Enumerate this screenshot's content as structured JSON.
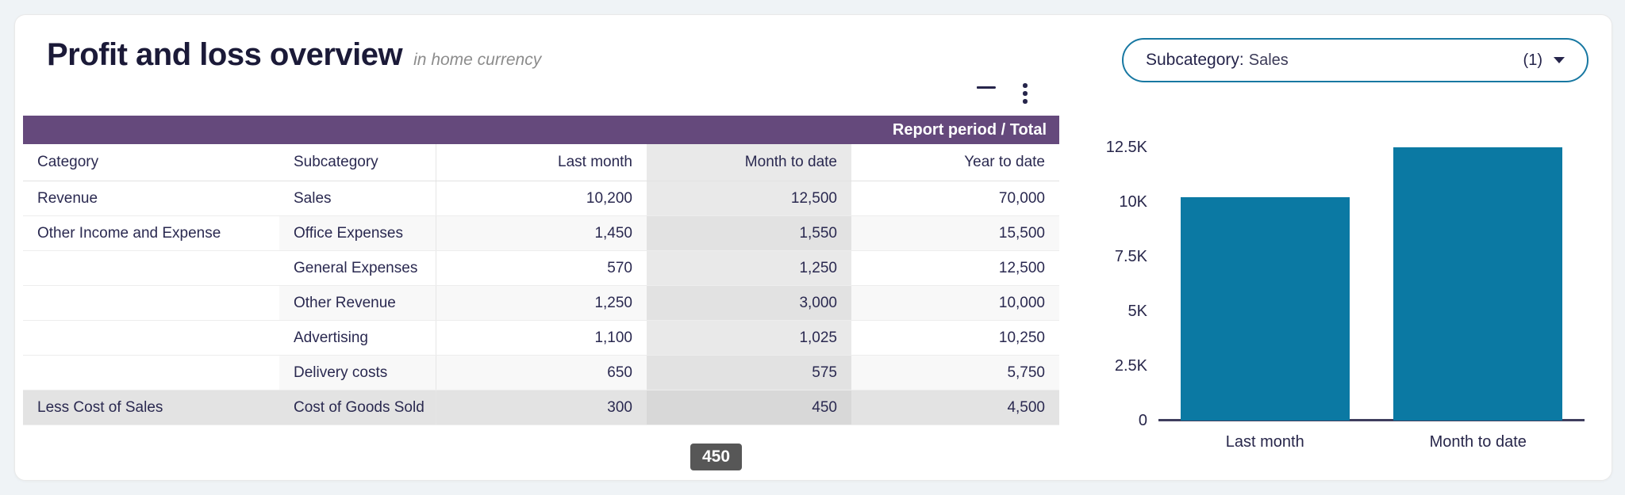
{
  "header": {
    "title": "Profit and loss overview",
    "subtitle": "in home currency",
    "icons": {
      "filter": "filter-icon",
      "menu": "kebab-menu-icon"
    }
  },
  "colors": {
    "page_background": "#eff3f6",
    "band_purple": "#65497c",
    "bar_teal": "#0b79a3",
    "dropdown_border_teal": "#1878a2",
    "tooltip_background": "#575757",
    "highlight_column_gray": "#e9e9e9"
  },
  "table": {
    "band_label": "Report period / Total",
    "columns": [
      "Category",
      "Subcategory",
      "Last month",
      "Month to date",
      "Year to date"
    ],
    "highlight_column": "Month to date",
    "rows": [
      {
        "category": "Revenue",
        "subcategory": "Sales",
        "last_month": "10,200",
        "month_to_date": "12,500",
        "year_to_date": "70,000",
        "zebra": false,
        "highlighted": false
      },
      {
        "category": "Other Income and Expense",
        "subcategory": "Office Expenses",
        "last_month": "1,450",
        "month_to_date": "1,550",
        "year_to_date": "15,500",
        "zebra": true,
        "highlighted": false
      },
      {
        "category": "",
        "subcategory": "General Expenses",
        "last_month": "570",
        "month_to_date": "1,250",
        "year_to_date": "12,500",
        "zebra": false,
        "highlighted": false
      },
      {
        "category": "",
        "subcategory": "Other Revenue",
        "last_month": "1,250",
        "month_to_date": "3,000",
        "year_to_date": "10,000",
        "zebra": true,
        "highlighted": false
      },
      {
        "category": "",
        "subcategory": "Advertising",
        "last_month": "1,100",
        "month_to_date": "1,025",
        "year_to_date": "10,250",
        "zebra": false,
        "highlighted": false
      },
      {
        "category": "",
        "subcategory": "Delivery costs",
        "last_month": "650",
        "month_to_date": "575",
        "year_to_date": "5,750",
        "zebra": true,
        "highlighted": false
      },
      {
        "category": "Less Cost of Sales",
        "subcategory": "Cost of Goods Sold",
        "last_month": "300",
        "month_to_date": "450",
        "year_to_date": "4,500",
        "zebra": false,
        "highlighted": true
      }
    ]
  },
  "tooltip": {
    "value": "450"
  },
  "filter_dropdown": {
    "label": "Subcategory:",
    "value": "Sales",
    "count": "(1)",
    "caret": "caret-down-icon"
  },
  "chart_data": {
    "type": "bar",
    "categories": [
      "Last month",
      "Month to date"
    ],
    "values": [
      10200,
      12500
    ],
    "series_name": "Sales",
    "title": "",
    "xlabel": "",
    "ylabel": "",
    "ylim": [
      0,
      13000
    ],
    "yticks": [
      0,
      2500,
      5000,
      7500,
      10000,
      12500
    ],
    "ytick_labels": [
      "0",
      "2.5K",
      "5K",
      "7.5K",
      "10K",
      "12.5K"
    ],
    "bar_color": "#0b79a3",
    "grid": false,
    "legend_position": "none"
  }
}
